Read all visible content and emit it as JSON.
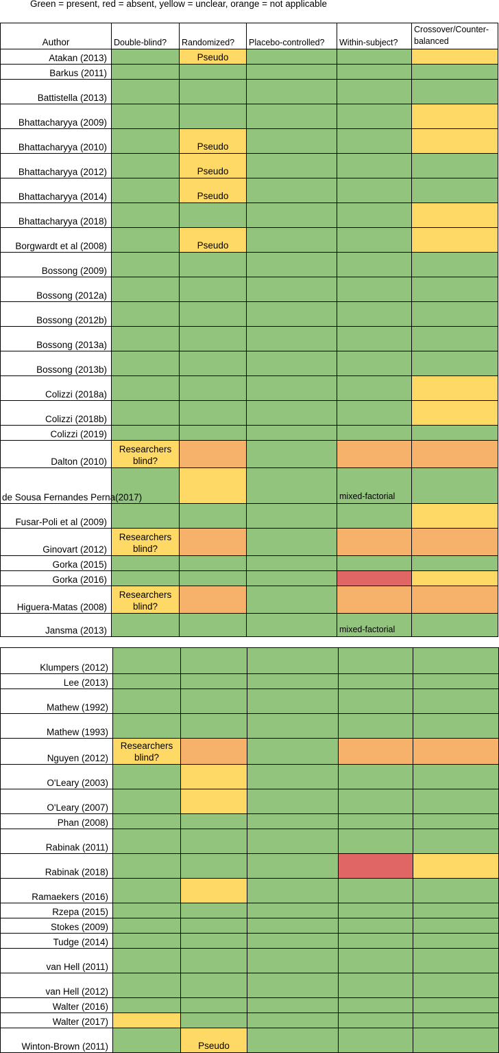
{
  "legend": "Green = present, red = absent, yellow = unclear, orange = not applicable",
  "headers": [
    "Author",
    "Double-blind?",
    "Randomized?",
    "Placebo-controlled?",
    "Within-subject?",
    "Crossover/Counter-balanced"
  ],
  "colors": {
    "g": "#93c47d",
    "y": "#ffd966",
    "o": "#f6b26b",
    "r": "#e06666"
  },
  "table1": [
    {
      "author": "Atakan (2013)",
      "cells": [
        "g",
        "y",
        "g",
        "g",
        "y"
      ],
      "notes": {
        "1": "Pseudo"
      }
    },
    {
      "author": "Barkus (2011)",
      "cells": [
        "g",
        "g",
        "g",
        "g",
        "g"
      ]
    },
    {
      "author": "Battistella (2013)",
      "cells": [
        "g",
        "g",
        "g",
        "g",
        "g"
      ]
    },
    {
      "author": "Bhattacharyya (2009)",
      "cells": [
        "g",
        "g",
        "g",
        "g",
        "y"
      ]
    },
    {
      "author": "Bhattacharyya (2010)",
      "cells": [
        "g",
        "y",
        "g",
        "g",
        "y"
      ],
      "notes": {
        "1": "Pseudo"
      }
    },
    {
      "author": "Bhattacharyya (2012)",
      "cells": [
        "g",
        "y",
        "g",
        "g",
        "g"
      ],
      "notes": {
        "1": "Pseudo"
      }
    },
    {
      "author": "Bhattacharyya (2014)",
      "cells": [
        "g",
        "y",
        "g",
        "g",
        "g"
      ],
      "notes": {
        "1": "Pseudo"
      }
    },
    {
      "author": "Bhattacharyya (2018)",
      "cells": [
        "g",
        "g",
        "g",
        "g",
        "y"
      ]
    },
    {
      "author": "Borgwardt et al (2008)",
      "cells": [
        "g",
        "y",
        "g",
        "g",
        "y"
      ],
      "notes": {
        "1": "Pseudo"
      }
    },
    {
      "author": "Bossong (2009)",
      "cells": [
        "g",
        "g",
        "g",
        "g",
        "g"
      ]
    },
    {
      "author": "Bossong (2012a)",
      "cells": [
        "g",
        "g",
        "g",
        "g",
        "g"
      ]
    },
    {
      "author": "Bossong (2012b)",
      "cells": [
        "g",
        "g",
        "g",
        "g",
        "g"
      ]
    },
    {
      "author": "Bossong (2013a)",
      "cells": [
        "g",
        "g",
        "g",
        "g",
        "g"
      ]
    },
    {
      "author": "Bossong (2013b)",
      "cells": [
        "g",
        "g",
        "g",
        "g",
        "g"
      ]
    },
    {
      "author": "Colizzi (2018a)",
      "cells": [
        "g",
        "g",
        "g",
        "g",
        "y"
      ]
    },
    {
      "author": "Colizzi (2018b)",
      "cells": [
        "g",
        "g",
        "g",
        "g",
        "y"
      ]
    },
    {
      "author": "Colizzi (2019)",
      "cells": [
        "g",
        "g",
        "g",
        "g",
        "g"
      ]
    },
    {
      "author": "Dalton (2010)",
      "cells": [
        "y",
        "o",
        "g",
        "o",
        "o"
      ],
      "notes": {
        "0": "Researchers blind?"
      }
    },
    {
      "author": "de Sousa Fernandes Perna(2017)",
      "cells": [
        "g",
        "y",
        "g",
        "g",
        "g"
      ],
      "notes": {
        "3": "mixed-factorial"
      }
    },
    {
      "author": "Fusar-Poli et al (2009)",
      "cells": [
        "g",
        "g",
        "g",
        "g",
        "y"
      ]
    },
    {
      "author": "Ginovart (2012)",
      "cells": [
        "y",
        "o",
        "g",
        "o",
        "o"
      ],
      "notes": {
        "0": "Researchers blind?"
      }
    },
    {
      "author": "Gorka (2015)",
      "cells": [
        "g",
        "g",
        "g",
        "g",
        "g"
      ]
    },
    {
      "author": "Gorka (2016)",
      "cells": [
        "g",
        "g",
        "g",
        "r",
        "y"
      ]
    },
    {
      "author": "Higuera-Matas (2008)",
      "cells": [
        "y",
        "o",
        "g",
        "o",
        "o"
      ],
      "notes": {
        "0": "Researchers blind?"
      }
    },
    {
      "author": "Jansma (2013)",
      "cells": [
        "g",
        "g",
        "g",
        "g",
        "g"
      ],
      "notes": {
        "3": "mixed-factorial"
      }
    }
  ],
  "table2": [
    {
      "author": "Klumpers (2012)",
      "cells": [
        "g",
        "g",
        "g",
        "g",
        "g"
      ]
    },
    {
      "author": "Lee (2013)",
      "cells": [
        "g",
        "g",
        "g",
        "g",
        "g"
      ]
    },
    {
      "author": "Mathew (1992)",
      "cells": [
        "g",
        "g",
        "g",
        "g",
        "g"
      ]
    },
    {
      "author": "Mathew (1993)",
      "cells": [
        "g",
        "g",
        "g",
        "g",
        "g"
      ]
    },
    {
      "author": "Nguyen (2012)",
      "cells": [
        "y",
        "o",
        "g",
        "o",
        "o"
      ],
      "notes": {
        "0": "Researchers blind?"
      }
    },
    {
      "author": "O'Leary (2003)",
      "cells": [
        "g",
        "y",
        "g",
        "g",
        "g"
      ]
    },
    {
      "author": "O'Leary (2007)",
      "cells": [
        "g",
        "y",
        "g",
        "g",
        "g"
      ]
    },
    {
      "author": "Phan (2008)",
      "cells": [
        "g",
        "g",
        "g",
        "g",
        "g"
      ]
    },
    {
      "author": "Rabinak (2011)",
      "cells": [
        "g",
        "g",
        "g",
        "g",
        "g"
      ]
    },
    {
      "author": "Rabinak (2018)",
      "cells": [
        "g",
        "g",
        "g",
        "r",
        "y"
      ]
    },
    {
      "author": "Ramaekers (2016)",
      "cells": [
        "g",
        "y",
        "g",
        "g",
        "g"
      ]
    },
    {
      "author": "Rzepa (2015)",
      "cells": [
        "g",
        "g",
        "g",
        "g",
        "g"
      ]
    },
    {
      "author": "Stokes (2009)",
      "cells": [
        "g",
        "g",
        "g",
        "g",
        "g"
      ]
    },
    {
      "author": "Tudge (2014)",
      "cells": [
        "g",
        "g",
        "g",
        "g",
        "g"
      ]
    },
    {
      "author": "van Hell (2011)",
      "cells": [
        "g",
        "g",
        "g",
        "g",
        "g"
      ]
    },
    {
      "author": "van Hell (2012)",
      "cells": [
        "g",
        "g",
        "g",
        "g",
        "g"
      ]
    },
    {
      "author": "Walter (2016)",
      "cells": [
        "g",
        "g",
        "g",
        "g",
        "g"
      ]
    },
    {
      "author": "Walter (2017)",
      "cells": [
        "y",
        "g",
        "g",
        "g",
        "g"
      ]
    },
    {
      "author": "Winton-Brown (2011)",
      "cells": [
        "g",
        "y",
        "g",
        "g",
        "g"
      ],
      "notes": {
        "1": "Pseudo"
      }
    }
  ]
}
